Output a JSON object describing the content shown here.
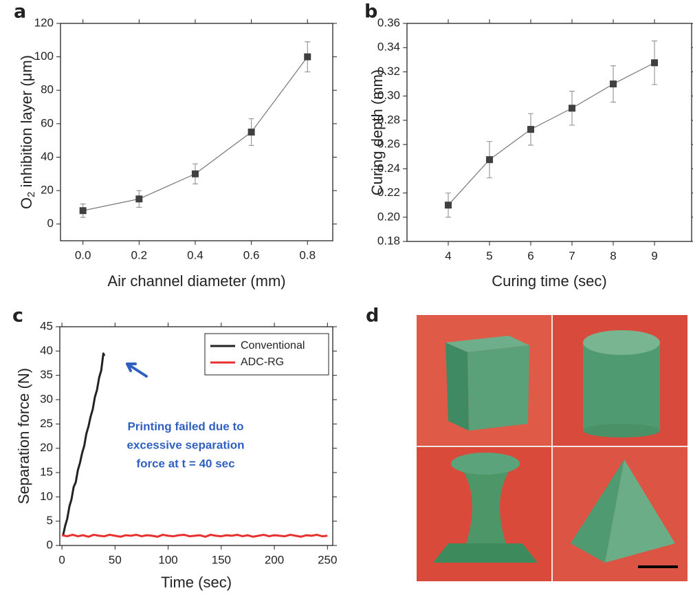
{
  "chart_data": [
    {
      "type": "line",
      "label": "a",
      "xlabel": "Air channel diameter (mm)",
      "ylabel": {
        "text": "O",
        "sub": "2",
        "rest": " inhibition layer (μm)"
      },
      "xlim": [
        -0.08,
        0.89
      ],
      "ylim": [
        -10,
        120
      ],
      "xticks": [
        {
          "value": 0,
          "label": "0.0"
        },
        0.2,
        0.4,
        0.6,
        0.8
      ],
      "yticks": [
        0,
        20,
        40,
        60,
        80,
        100,
        120
      ],
      "series": [
        {
          "color": "#404040",
          "x": [
            0,
            0.2,
            0.4,
            0.6,
            0.8
          ],
          "values": [
            8,
            15,
            30,
            55,
            100
          ],
          "errors": [
            4,
            5,
            6,
            8,
            9
          ]
        }
      ]
    },
    {
      "type": "line",
      "label": "b",
      "xlabel": "Curing time (sec)",
      "ylabel": "Curing depth (mm)",
      "xlim": [
        3,
        9.9
      ],
      "ylim": [
        0.18,
        0.36
      ],
      "xticks": [
        4,
        5,
        6,
        7,
        8,
        9
      ],
      "yticks": [
        0.18,
        {
          "value": 0.2,
          "label": "0.20"
        },
        0.22,
        0.24,
        0.26,
        0.28,
        {
          "value": 0.3,
          "label": "0.30"
        },
        0.32,
        0.34,
        0.36
      ],
      "series": [
        {
          "color": "#404040",
          "x": [
            4,
            5,
            6,
            7,
            8,
            9
          ],
          "values": [
            0.21,
            0.2475,
            0.2725,
            0.29,
            0.31,
            0.3275
          ],
          "errors": [
            0.01,
            0.015,
            0.013,
            0.014,
            0.015,
            0.018
          ]
        }
      ]
    },
    {
      "type": "line",
      "label": "c",
      "xlabel": "Time (sec)",
      "ylabel": "Separation force (N)",
      "xlim": [
        -2,
        255
      ],
      "ylim": [
        0,
        45
      ],
      "xticks": [
        0,
        50,
        100,
        150,
        200,
        250
      ],
      "yticks": [
        0,
        5,
        10,
        15,
        20,
        25,
        30,
        35,
        40,
        45
      ],
      "legend": "upper right",
      "annotations": [
        "Printing failed due to",
        "excessive separation",
        "force at t = 40 sec"
      ],
      "series": [
        {
          "name": "Conventional",
          "color": "#222222",
          "x": [
            1,
            3,
            5,
            7,
            9,
            11,
            13,
            15,
            17,
            19,
            21,
            23,
            25,
            27,
            29,
            31,
            33,
            35,
            37,
            39,
            40
          ],
          "values": [
            2,
            4,
            5.5,
            8,
            9.5,
            12,
            13,
            15.5,
            17,
            19,
            20.5,
            23,
            24.5,
            26.5,
            28,
            30.5,
            32,
            34.5,
            36,
            39.5,
            39
          ]
        },
        {
          "name": "ADC-RG",
          "color": "#e8312f",
          "x": [
            0,
            5,
            10,
            15,
            20,
            25,
            30,
            35,
            40,
            45,
            50,
            55,
            60,
            65,
            70,
            75,
            80,
            85,
            90,
            95,
            100,
            105,
            110,
            115,
            120,
            125,
            130,
            135,
            140,
            145,
            150,
            155,
            160,
            165,
            170,
            175,
            180,
            185,
            190,
            195,
            200,
            205,
            210,
            215,
            220,
            225,
            230,
            235,
            240,
            245,
            250
          ],
          "values": [
            2.1,
            1.9,
            2.2,
            1.9,
            2.1,
            1.8,
            2.2,
            2.0,
            1.9,
            2.2,
            2.0,
            1.8,
            2.1,
            2.0,
            2.2,
            1.9,
            2.1,
            2.0,
            1.8,
            2.2,
            2.0,
            1.9,
            2.1,
            2.2,
            1.9,
            2.0,
            2.1,
            1.8,
            2.2,
            2.0,
            1.9,
            2.1,
            2.0,
            2.2,
            1.9,
            2.1,
            1.8,
            2.0,
            2.2,
            1.9,
            2.1,
            2.0,
            1.9,
            2.2,
            2.0,
            1.8,
            2.1,
            2.0,
            2.2,
            1.9,
            2.0
          ]
        }
      ]
    }
  ],
  "photo_panel": {
    "label": "d"
  }
}
